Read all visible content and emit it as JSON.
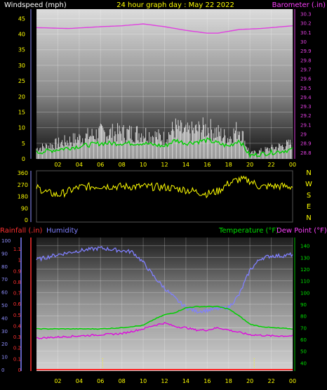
{
  "header": {
    "windspeed_label": "Windspeed (mph)",
    "graph_title": "24 hour graph day : May 22 2022",
    "barometer_label": "Barometer (.in)"
  },
  "labels": {
    "rainfall": "Rainfall (.in)",
    "humidity": "Humidity",
    "temperature": "Temperature (°F)",
    "dewpoint": "Dew Point (°F)"
  },
  "colors": {
    "wind_avg": "#00d000",
    "wind_gust": "#ffffff",
    "barometer": "#e040e0",
    "direction": "#ffff00",
    "humidity": "#8080ff",
    "temperature": "#00d000",
    "dewpoint": "#e000e0",
    "rainfall": "#ff2020",
    "axis_text": "#ffff00"
  },
  "chart_data": [
    {
      "type": "line",
      "name": "wind-barometer",
      "x_ticks": [
        "02",
        "04",
        "06",
        "08",
        "10",
        "12",
        "14",
        "16",
        "18",
        "20",
        "22",
        "00"
      ],
      "y_left_ticks": [
        "0",
        "5",
        "10",
        "15",
        "20",
        "25",
        "30",
        "35",
        "40",
        "45"
      ],
      "y_right_ticks": [
        "28.8",
        "28.9",
        "29",
        "29.1",
        "29.2",
        "29.3",
        "29.4",
        "29.5",
        "29.6",
        "29.7",
        "29.8",
        "29.9",
        "30",
        "30.1",
        "30.2",
        "30.3"
      ],
      "ylim_left": [
        0,
        48
      ],
      "ylim_right": [
        28.73,
        30.35
      ],
      "series": [
        {
          "name": "Windspeed (mph)",
          "hours": [
            0,
            2,
            4,
            6,
            8,
            10,
            12,
            13,
            14,
            16,
            18,
            19,
            20,
            22,
            24
          ],
          "values": [
            2,
            3,
            4,
            5,
            5,
            5,
            4,
            6,
            5,
            6,
            4,
            6,
            1,
            2,
            3
          ]
        },
        {
          "name": "Barometer (.in)",
          "hours": [
            0,
            3,
            6,
            8,
            10,
            12,
            14,
            16,
            17,
            19,
            21,
            23,
            24
          ],
          "values": [
            30.15,
            30.14,
            30.16,
            30.17,
            30.19,
            30.16,
            30.12,
            30.09,
            30.09,
            30.13,
            30.14,
            30.16,
            30.17
          ]
        }
      ]
    },
    {
      "type": "line",
      "name": "wind-direction",
      "y_ticks": [
        "360",
        "270",
        "180",
        "90",
        "0"
      ],
      "compass": [
        "N",
        "W",
        "S",
        "E",
        "N"
      ],
      "ylim": [
        0,
        360
      ],
      "series": [
        {
          "name": "Direction",
          "hours": [
            0,
            1,
            2,
            4,
            6,
            8,
            10,
            12,
            14,
            16,
            17,
            18,
            19,
            20,
            21,
            22,
            24
          ],
          "values": [
            250,
            210,
            190,
            250,
            260,
            255,
            255,
            250,
            230,
            200,
            220,
            280,
            310,
            300,
            250,
            260,
            255
          ]
        }
      ]
    },
    {
      "type": "line",
      "name": "temp-humidity",
      "y_left_ticks": [
        "0",
        "0.1",
        "0.2",
        "0.3",
        "0.4",
        "0.5",
        "0.6",
        "0.7",
        "0.8",
        "0.9",
        "1",
        "1.1"
      ],
      "humidity_ticks": [
        "0",
        "10",
        "20",
        "30",
        "40",
        "50",
        "60",
        "70",
        "80",
        "90",
        "100"
      ],
      "y_right_ticks": [
        "40",
        "50",
        "60",
        "70",
        "80",
        "90",
        "100",
        "110",
        "120",
        "130",
        "140"
      ],
      "ylim_temp": [
        33,
        147
      ],
      "series": [
        {
          "name": "Humidity",
          "hours": [
            0,
            2,
            4,
            6,
            7,
            8,
            9,
            10,
            11,
            12,
            13,
            14,
            15,
            16,
            17,
            18,
            19,
            20,
            21,
            22,
            23,
            24
          ],
          "values": [
            85,
            89,
            92,
            94,
            93,
            92,
            91,
            83,
            72,
            63,
            55,
            48,
            45,
            46,
            47,
            48,
            58,
            77,
            86,
            88,
            88,
            89
          ]
        },
        {
          "name": "Temperature (°F)",
          "hours": [
            0,
            2,
            4,
            6,
            8,
            9,
            10,
            11,
            12,
            13,
            14,
            15,
            16,
            17,
            18,
            19,
            20,
            21,
            22,
            24
          ],
          "values": [
            69,
            69,
            69,
            69,
            70,
            71,
            72,
            77,
            81,
            83,
            87,
            88,
            88,
            88,
            86,
            80,
            73,
            71,
            70,
            69
          ]
        },
        {
          "name": "Dew Point (°F)",
          "hours": [
            0,
            2,
            4,
            6,
            8,
            10,
            11,
            12,
            13,
            14,
            15,
            16,
            17,
            18,
            19,
            20,
            22,
            24
          ],
          "values": [
            61,
            62,
            63,
            64,
            65,
            69,
            72,
            74,
            71,
            70,
            68,
            68,
            70,
            68,
            66,
            64,
            63,
            63
          ]
        },
        {
          "name": "Rainfall (.in)",
          "hours": [
            0,
            24
          ],
          "values": [
            0,
            0
          ]
        }
      ]
    }
  ]
}
